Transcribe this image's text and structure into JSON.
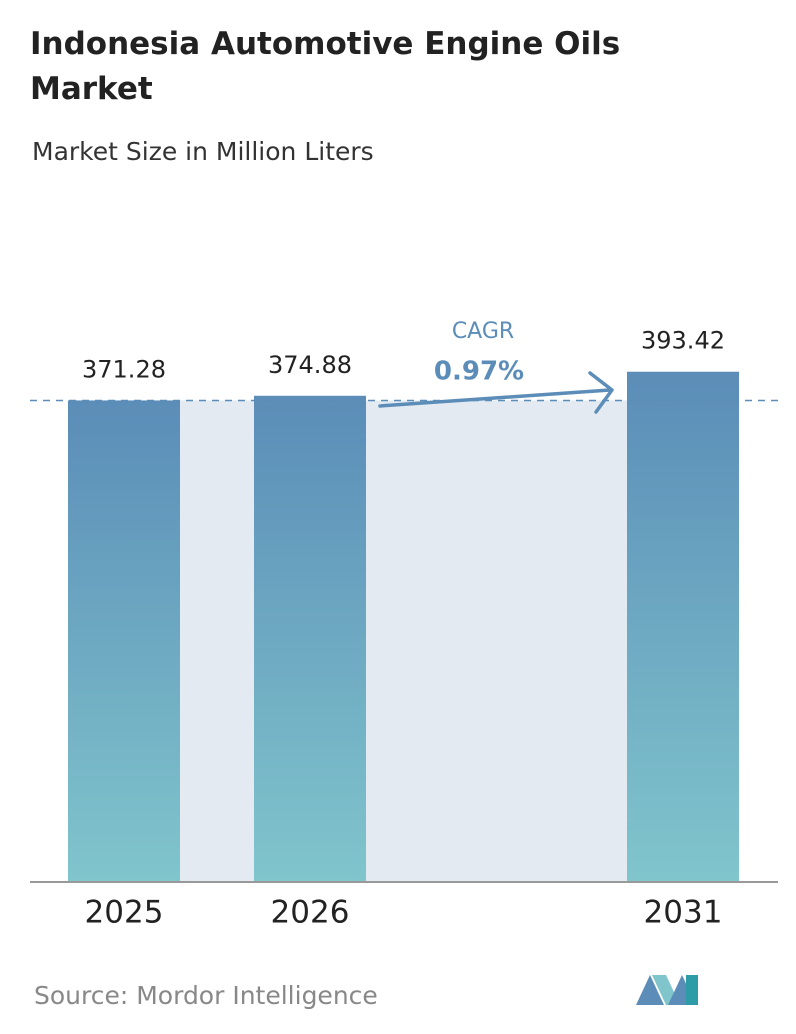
{
  "chart_data": {
    "type": "bar",
    "title": "Indonesia Automotive Engine Oils Market",
    "subtitle": "Market Size in Million Liters",
    "categories": [
      "2025",
      "2026",
      "2031"
    ],
    "values": [
      371.28,
      374.88,
      393.42
    ],
    "annotation": {
      "label": "CAGR",
      "value": "0.97%"
    },
    "source": "Source:  Mordor Intelligence"
  }
}
